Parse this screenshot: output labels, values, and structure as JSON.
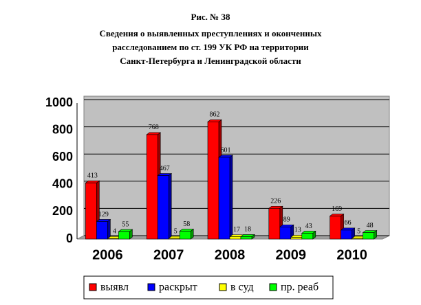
{
  "chart_data": {
    "type": "bar",
    "title_lines": [
      "Рис. № 38",
      "Сведения о выявленных преступлениях и оконченных",
      "расследованием по ст. 199 УК РФ на территории",
      "Санкт-Петербурга и Ленинградской области"
    ],
    "categories": [
      "2006",
      "2007",
      "2008",
      "2009",
      "2010"
    ],
    "series": [
      {
        "name": "выявл",
        "color": "#ff0000",
        "values": [
          413,
          768,
          862,
          226,
          169
        ]
      },
      {
        "name": "раскрыт",
        "color": "#0000ff",
        "values": [
          129,
          467,
          601,
          89,
          66
        ]
      },
      {
        "name": "в суд",
        "color": "#ffff00",
        "values": [
          4,
          5,
          17,
          13,
          5
        ]
      },
      {
        "name": "пр. реаб",
        "color": "#00ff00",
        "values": [
          55,
          58,
          18,
          43,
          48
        ]
      }
    ],
    "ylim": [
      0,
      1000
    ],
    "yticks": [
      0,
      200,
      400,
      600,
      800,
      1000
    ],
    "grid": true,
    "legend": "bottom"
  }
}
